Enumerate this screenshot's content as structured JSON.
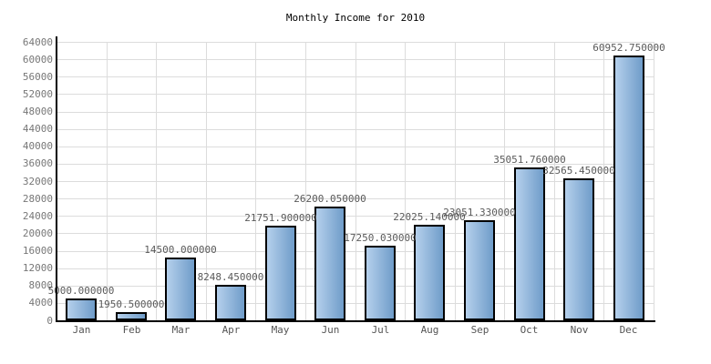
{
  "chart_data": {
    "type": "bar",
    "title": "Monthly Income for 2010",
    "categories": [
      "Jan",
      "Feb",
      "Mar",
      "Apr",
      "May",
      "Jun",
      "Jul",
      "Aug",
      "Sep",
      "Oct",
      "Nov",
      "Dec"
    ],
    "values": [
      5000.0,
      1950.5,
      14500.0,
      8248.45,
      21751.9,
      26200.05,
      17250.03,
      22025.14,
      23051.33,
      35051.76,
      32565.45,
      60952.75
    ],
    "value_labels": [
      "5000.000000",
      "1950.500000",
      "14500.000000",
      "8248.450000",
      "21751.900000",
      "26200.050000",
      "17250.030000",
      "22025.140000",
      "23051.330000",
      "35051.760000",
      "32565.450000",
      "60952.750000"
    ],
    "xlabel": "",
    "ylabel": "",
    "ylim": [
      0,
      64000
    ],
    "ytick_step": 4000,
    "ytick_labels": [
      "0",
      "4000",
      "8000",
      "12000",
      "16000",
      "20000",
      "24000",
      "28000",
      "32000",
      "36000",
      "40000",
      "44000",
      "48000",
      "52000",
      "56000",
      "60000",
      "64000"
    ],
    "grid": "both",
    "legend": null,
    "colors": {
      "bar_gradient_light": "#b5d0ec",
      "bar_gradient_dark": "#6f9cc9",
      "bar_border": "#000000",
      "grid": "#dcdcdc",
      "axis": "#000000",
      "title_text": "#000000",
      "y_tick_text": "#777777",
      "x_tick_text": "#555555",
      "value_text": "#5a5a5a",
      "background": "#ffffff"
    }
  }
}
